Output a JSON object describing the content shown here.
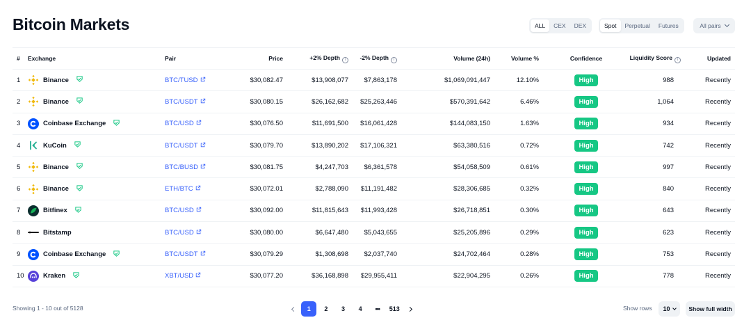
{
  "page": {
    "title": "Bitcoin Markets"
  },
  "filters": {
    "market_type": [
      "ALL",
      "CEX",
      "DEX"
    ],
    "market_type_selected": 0,
    "category": [
      "Spot",
      "Perpetual",
      "Futures"
    ],
    "category_selected": 0,
    "pairs_label": "All pairs"
  },
  "table": {
    "headers": {
      "rank": "#",
      "exchange": "Exchange",
      "pair": "Pair",
      "price": "Price",
      "depth_pos": "+2% Depth",
      "depth_neg": "-2% Depth",
      "volume": "Volume (24h)",
      "volume_pct": "Volume %",
      "confidence": "Confidence",
      "liquidity": "Liquidity Score",
      "updated": "Updated"
    },
    "rows": [
      {
        "rank": "1",
        "exchange": "Binance",
        "logo": "binance-logo",
        "verified": true,
        "pair": "BTC/TUSD",
        "price": "$30,082.47",
        "depth_pos": "$13,908,077",
        "depth_neg": "$7,863,178",
        "volume": "$1,069,091,447",
        "volume_pct": "12.10%",
        "confidence": "High",
        "liquidity": "988",
        "updated": "Recently"
      },
      {
        "rank": "2",
        "exchange": "Binance",
        "logo": "binance-logo",
        "verified": true,
        "pair": "BTC/USDT",
        "price": "$30,080.15",
        "depth_pos": "$26,162,682",
        "depth_neg": "$25,263,446",
        "volume": "$570,391,642",
        "volume_pct": "6.46%",
        "confidence": "High",
        "liquidity": "1,064",
        "updated": "Recently"
      },
      {
        "rank": "3",
        "exchange": "Coinbase Exchange",
        "logo": "coinbase-logo",
        "verified": true,
        "pair": "BTC/USD",
        "price": "$30,076.50",
        "depth_pos": "$11,691,500",
        "depth_neg": "$16,061,428",
        "volume": "$144,083,150",
        "volume_pct": "1.63%",
        "confidence": "High",
        "liquidity": "934",
        "updated": "Recently"
      },
      {
        "rank": "4",
        "exchange": "KuCoin",
        "logo": "kucoin-logo",
        "verified": true,
        "pair": "BTC/USDT",
        "price": "$30,079.70",
        "depth_pos": "$13,890,202",
        "depth_neg": "$17,106,321",
        "volume": "$63,380,516",
        "volume_pct": "0.72%",
        "confidence": "High",
        "liquidity": "742",
        "updated": "Recently"
      },
      {
        "rank": "5",
        "exchange": "Binance",
        "logo": "binance-logo",
        "verified": true,
        "pair": "BTC/BUSD",
        "price": "$30,081.75",
        "depth_pos": "$4,247,703",
        "depth_neg": "$6,361,578",
        "volume": "$54,058,509",
        "volume_pct": "0.61%",
        "confidence": "High",
        "liquidity": "997",
        "updated": "Recently"
      },
      {
        "rank": "6",
        "exchange": "Binance",
        "logo": "binance-logo",
        "verified": true,
        "pair": "ETH/BTC",
        "price": "$30,072.01",
        "depth_pos": "$2,788,090",
        "depth_neg": "$11,191,482",
        "volume": "$28,306,685",
        "volume_pct": "0.32%",
        "confidence": "High",
        "liquidity": "840",
        "updated": "Recently"
      },
      {
        "rank": "7",
        "exchange": "Bitfinex",
        "logo": "bitfinex-logo",
        "verified": true,
        "pair": "BTC/USD",
        "price": "$30,092.00",
        "depth_pos": "$11,815,643",
        "depth_neg": "$11,993,428",
        "volume": "$26,718,851",
        "volume_pct": "0.30%",
        "confidence": "High",
        "liquidity": "643",
        "updated": "Recently"
      },
      {
        "rank": "8",
        "exchange": "Bitstamp",
        "logo": "bitstamp-logo",
        "verified": false,
        "pair": "BTC/USD",
        "price": "$30,080.00",
        "depth_pos": "$6,647,480",
        "depth_neg": "$5,043,655",
        "volume": "$25,205,896",
        "volume_pct": "0.29%",
        "confidence": "High",
        "liquidity": "623",
        "updated": "Recently"
      },
      {
        "rank": "9",
        "exchange": "Coinbase Exchange",
        "logo": "coinbase-logo",
        "verified": true,
        "pair": "BTC/USDT",
        "price": "$30,079.29",
        "depth_pos": "$1,308,698",
        "depth_neg": "$2,037,740",
        "volume": "$24,702,464",
        "volume_pct": "0.28%",
        "confidence": "High",
        "liquidity": "753",
        "updated": "Recently"
      },
      {
        "rank": "10",
        "exchange": "Kraken",
        "logo": "kraken-logo",
        "verified": true,
        "pair": "XBT/USD",
        "price": "$30,077.20",
        "depth_pos": "$36,168,898",
        "depth_neg": "$29,955,411",
        "volume": "$22,904,295",
        "volume_pct": "0.26%",
        "confidence": "High",
        "liquidity": "778",
        "updated": "Recently"
      }
    ]
  },
  "footer": {
    "showing": "Showing 1 - 10 out of 5128",
    "pages": [
      "1",
      "2",
      "3",
      "4"
    ],
    "ellipsis": "•••",
    "last_page": "513",
    "current_page": "1",
    "show_rows_label": "Show rows",
    "rows_value": "10",
    "full_width_label": "Show full width"
  },
  "colors": {
    "accent": "#3861fb",
    "high": "#16c784",
    "binance": "#f0b90b",
    "coinbase": "#0052ff",
    "kucoin": "#23af91",
    "kraken": "#5741d9",
    "bitfinex": "#16b157"
  }
}
